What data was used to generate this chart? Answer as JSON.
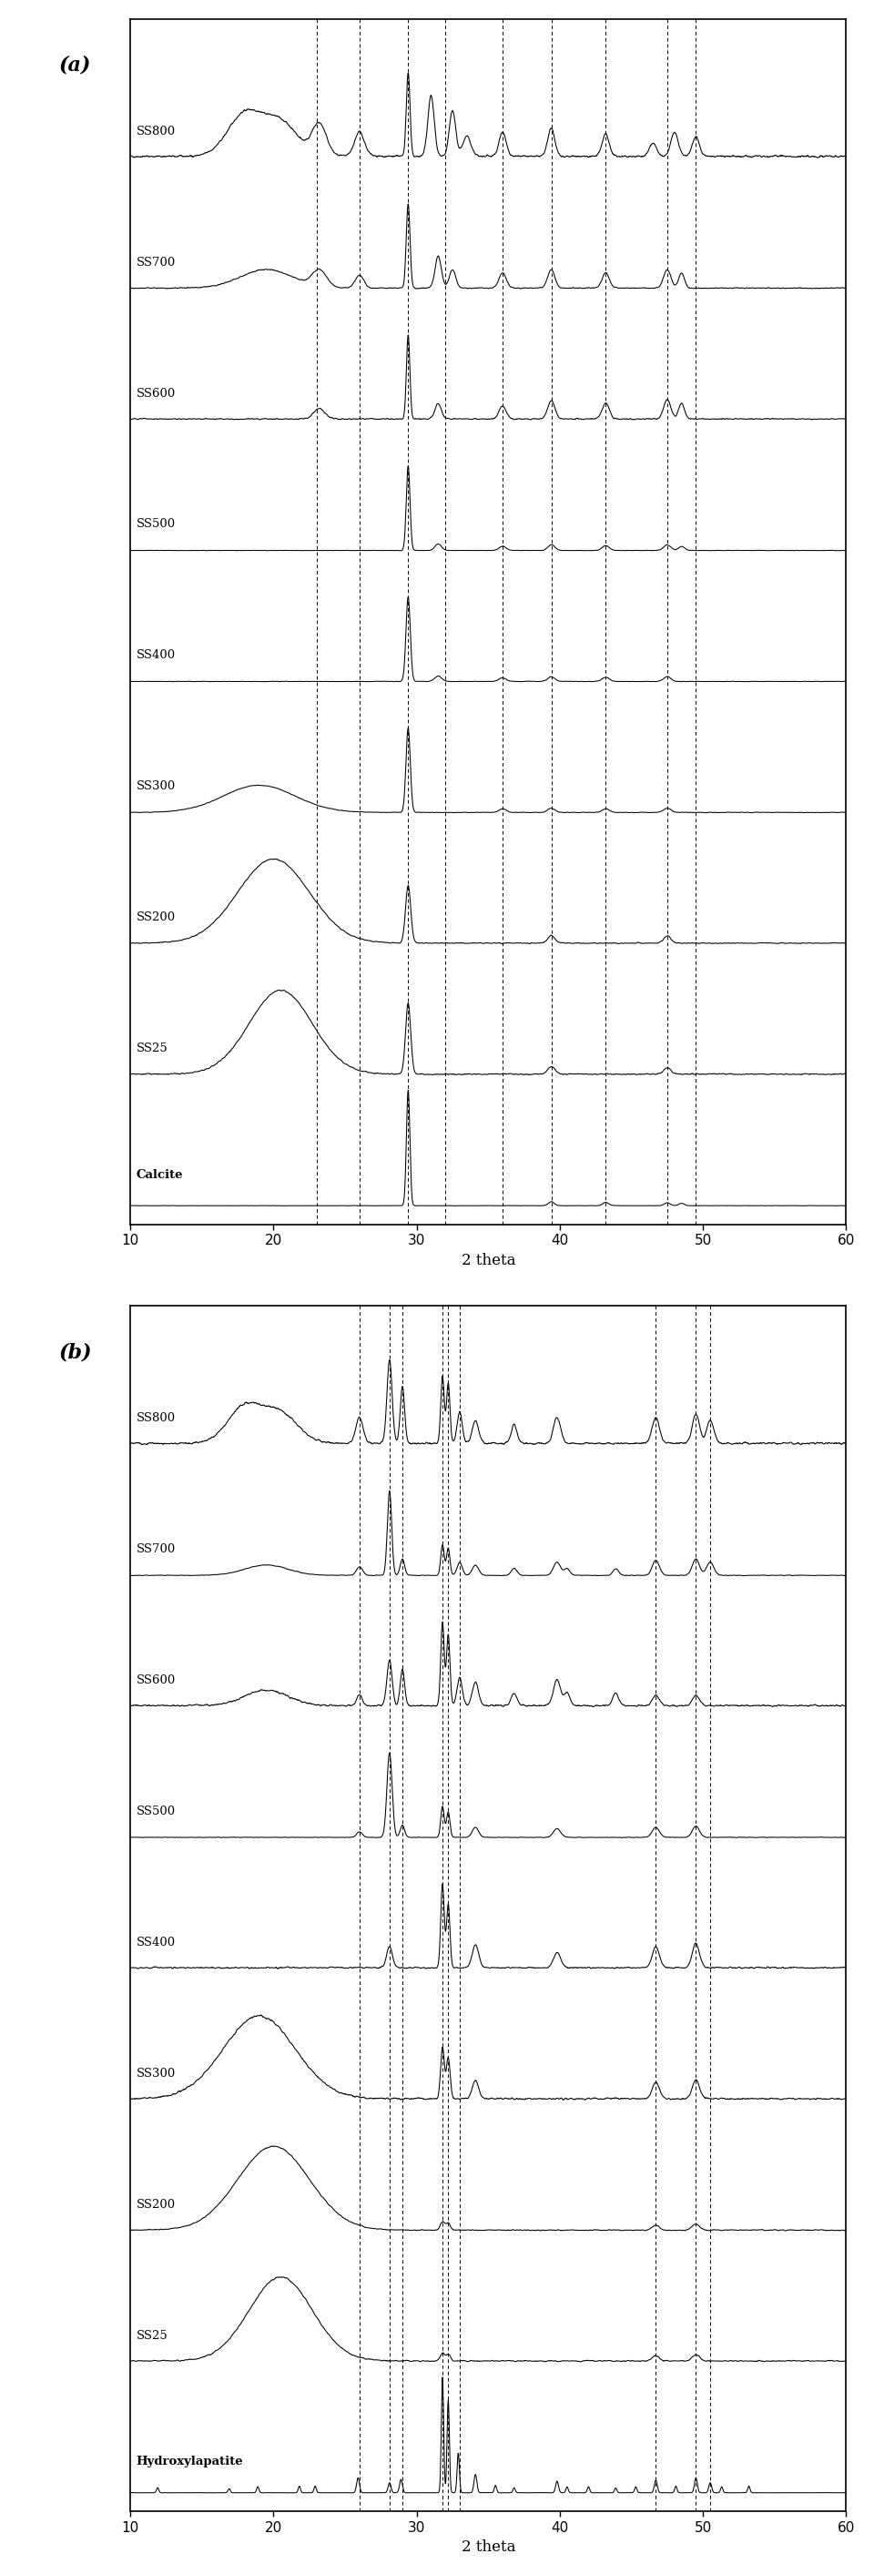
{
  "panel_a_label": "(a)",
  "panel_b_label": "(b)",
  "xmin": 10,
  "xmax": 60,
  "xlabel": "2 theta",
  "series_labels_a": [
    "SS800",
    "SS700",
    "SS600",
    "SS500",
    "SS400",
    "SS300",
    "SS200",
    "SS25",
    "Calcite"
  ],
  "series_labels_b": [
    "SS800",
    "SS700",
    "SS600",
    "SS500",
    "SS400",
    "SS300",
    "SS200",
    "SS25",
    "Hydroxylapatite"
  ],
  "dashed_lines_a": [
    23.0,
    26.0,
    29.4,
    32.0,
    36.0,
    39.4,
    43.2,
    47.5,
    49.5
  ],
  "dashed_lines_b": [
    26.0,
    28.1,
    29.0,
    31.8,
    32.2,
    33.0,
    46.7,
    49.5,
    50.5
  ],
  "background_color": "#ffffff",
  "line_color": "#000000",
  "figwidth": 9.6,
  "figheight": 28.27
}
